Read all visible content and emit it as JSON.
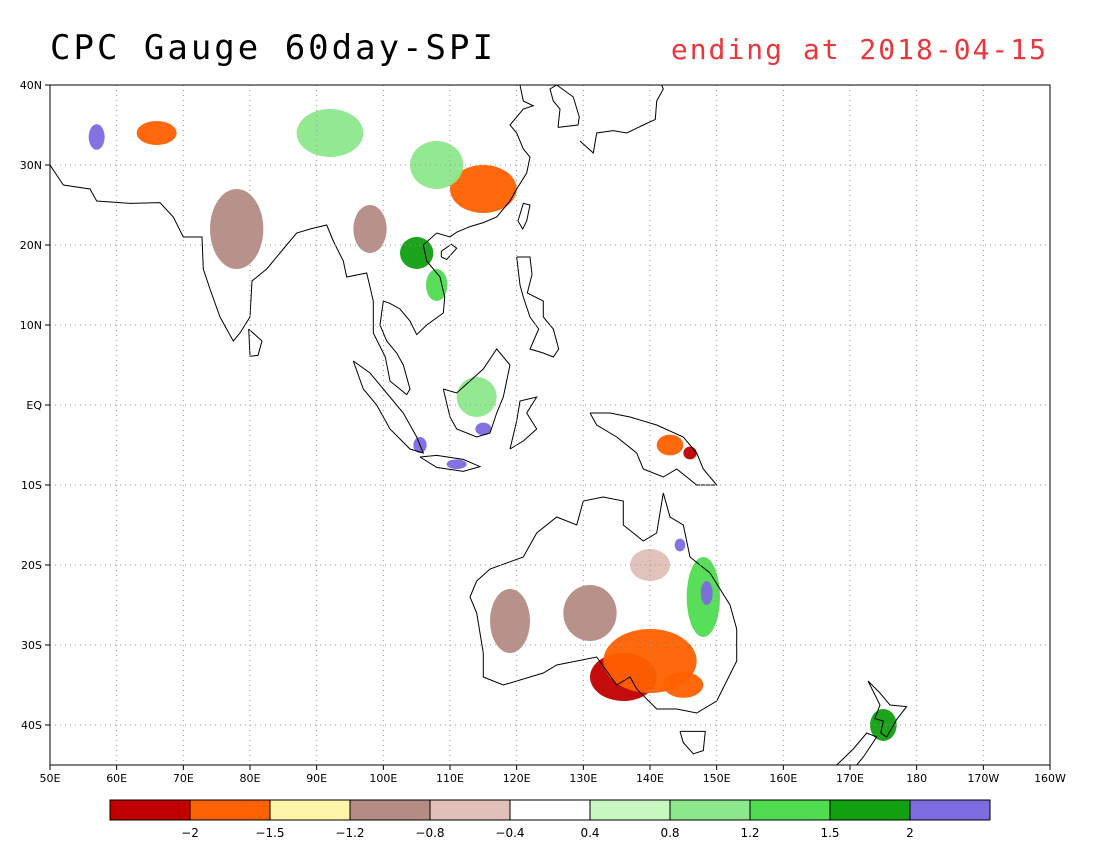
{
  "title": "CPC Gauge 60day-SPI",
  "subtitle": "ending at 2018-04-15",
  "map": {
    "lon_range": [
      50,
      200
    ],
    "lat_range": [
      -45,
      40
    ],
    "lon_ticks": [
      "50E",
      "60E",
      "70E",
      "80E",
      "90E",
      "100E",
      "110E",
      "120E",
      "130E",
      "140E",
      "150E",
      "160E",
      "170E",
      "180",
      "170W",
      "160W"
    ],
    "lat_ticks": [
      "40N",
      "30N",
      "20N",
      "10N",
      "EQ",
      "10S",
      "20S",
      "30S",
      "40S"
    ],
    "grid": "dotted"
  },
  "colorbar": {
    "colors": [
      "#c00000",
      "#ff6000",
      "#fff5a8",
      "#b48c84",
      "#e0c0b8",
      "#ffffff",
      "#c8f8c0",
      "#8ce88c",
      "#50dc50",
      "#10a010",
      "#7c6ce0"
    ],
    "labels": [
      "-2",
      "-1.5",
      "-1.2",
      "-0.8",
      "-0.4",
      "0.4",
      "0.8",
      "1.2",
      "1.5",
      "2"
    ]
  },
  "features": [
    {
      "name": "south-australia-drought",
      "lon": 136,
      "lat": -34,
      "rx": 5,
      "ry": 3,
      "color": "#c00000"
    },
    {
      "name": "south-australia-orange",
      "lon": 140,
      "lat": -32,
      "rx": 7,
      "ry": 4,
      "color": "#ff6000"
    },
    {
      "name": "south-china-dry",
      "lon": 115,
      "lat": 27,
      "rx": 5,
      "ry": 3,
      "color": "#ff6000"
    },
    {
      "name": "tibet-dry",
      "lon": 66,
      "lat": 34,
      "rx": 3,
      "ry": 1.5,
      "color": "#ff6000"
    },
    {
      "name": "png-dry",
      "lon": 143,
      "lat": -5,
      "rx": 2,
      "ry": 1.3,
      "color": "#ff6000"
    },
    {
      "name": "queensland-wet",
      "lon": 148,
      "lat": -24,
      "rx": 2.5,
      "ry": 5,
      "color": "#50dc50"
    },
    {
      "name": "queensland-purple",
      "lon": 148.5,
      "lat": -23.5,
      "rx": 0.9,
      "ry": 1.5,
      "color": "#7c6ce0"
    },
    {
      "name": "qld-purple-north",
      "lon": 144.5,
      "lat": -17.5,
      "rx": 0.8,
      "ry": 0.8,
      "color": "#7c6ce0"
    },
    {
      "name": "indochina-wet",
      "lon": 105,
      "lat": 19,
      "rx": 2.5,
      "ry": 2,
      "color": "#10a010"
    },
    {
      "name": "laos-wet",
      "lon": 108,
      "lat": 15,
      "rx": 1.6,
      "ry": 2,
      "color": "#50dc50"
    },
    {
      "name": "iran-purple",
      "lon": 57,
      "lat": 33.5,
      "rx": 1.2,
      "ry": 1.6,
      "color": "#7c6ce0"
    },
    {
      "name": "sumatra-purple",
      "lon": 105.5,
      "lat": -5,
      "rx": 1,
      "ry": 1,
      "color": "#7c6ce0"
    },
    {
      "name": "java-purple",
      "lon": 111,
      "lat": -7.4,
      "rx": 1.5,
      "ry": 0.6,
      "color": "#7c6ce0"
    },
    {
      "name": "borneo-purple",
      "lon": 115,
      "lat": -3,
      "rx": 1.2,
      "ry": 0.8,
      "color": "#7c6ce0"
    },
    {
      "name": "central-australia-dry",
      "lon": 131,
      "lat": -26,
      "rx": 4,
      "ry": 3.5,
      "color": "#b48c84"
    },
    {
      "name": "western-australia-dry",
      "lon": 119,
      "lat": -27,
      "rx": 3,
      "ry": 4,
      "color": "#b48c84"
    },
    {
      "name": "nz-wet",
      "lon": 175,
      "lat": -40,
      "rx": 2,
      "ry": 2,
      "color": "#10a010"
    },
    {
      "name": "india-dry",
      "lon": 78,
      "lat": 22,
      "rx": 4,
      "ry": 5,
      "color": "#b48c84"
    },
    {
      "name": "china-wet",
      "lon": 108,
      "lat": 30,
      "rx": 4,
      "ry": 3,
      "color": "#8ce88c"
    },
    {
      "name": "borneo-wet",
      "lon": 114,
      "lat": 1,
      "rx": 3,
      "ry": 2.5,
      "color": "#8ce88c"
    },
    {
      "name": "kazakh-wet",
      "lon": 92,
      "lat": 34,
      "rx": 5,
      "ry": 3,
      "color": "#8ce88c"
    },
    {
      "name": "myanmar-dry",
      "lon": 98,
      "lat": 22,
      "rx": 2.5,
      "ry": 3,
      "color": "#b48c84"
    },
    {
      "name": "queensland-dry",
      "lon": 140,
      "lat": -20,
      "rx": 3,
      "ry": 2,
      "color": "#e0c0b8"
    },
    {
      "name": "png-wet",
      "lon": 146,
      "lat": -6,
      "rx": 1,
      "ry": 0.8,
      "color": "#c00000"
    },
    {
      "name": "victoria-orange",
      "lon": 145,
      "lat": -35,
      "rx": 3,
      "ry": 1.6,
      "color": "#ff6000"
    }
  ]
}
